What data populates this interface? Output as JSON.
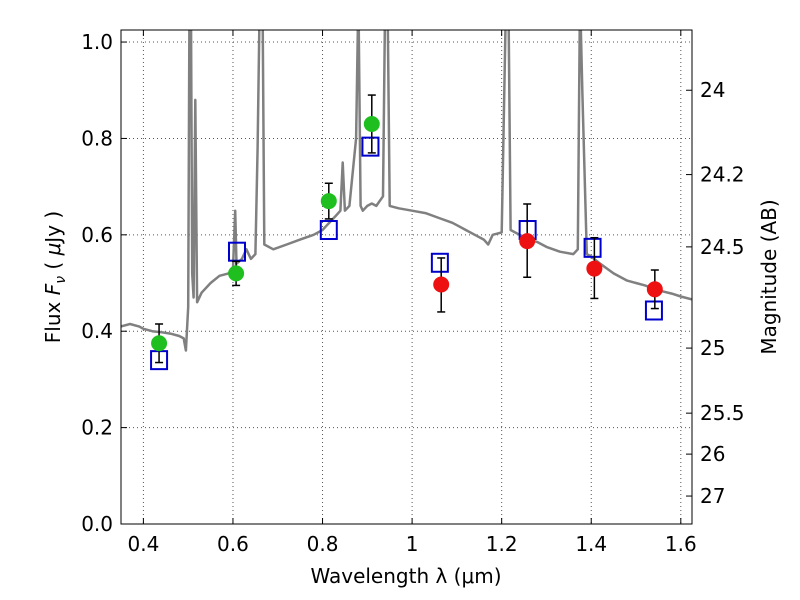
{
  "chart_data": {
    "type": "scatter",
    "xlabel": "Wavelength  λ (μm)",
    "ylabel_parts": [
      "Flux  ",
      "F",
      "ν",
      "  ( ",
      "μ",
      "Jy )"
    ],
    "ylabel_right": "Magnitude (AB)",
    "xlim": [
      0.35,
      1.625
    ],
    "ylim": [
      0.0,
      1.025
    ],
    "x_ticks": [
      0.4,
      0.6,
      0.8,
      1.0,
      1.2,
      1.4,
      1.6
    ],
    "x_tick_labels": [
      "0.4",
      "0.6",
      "0.8",
      "1",
      "1.2",
      "1.4",
      "1.6"
    ],
    "y_ticks": [
      0.0,
      0.2,
      0.4,
      0.6,
      0.8,
      1.0
    ],
    "y_tick_labels": [
      "0.0",
      "0.2",
      "0.4",
      "0.6",
      "0.8",
      "1.0"
    ],
    "right_ticks": [
      {
        "flux": 0.9,
        "label": "24"
      },
      {
        "flux": 0.725,
        "label": "24.2"
      },
      {
        "flux": 0.575,
        "label": "24.5"
      },
      {
        "flux": 0.365,
        "label": "25"
      },
      {
        "flux": 0.23,
        "label": "25.5"
      },
      {
        "flux": 0.145,
        "label": "26"
      },
      {
        "flux": 0.058,
        "label": "27"
      }
    ],
    "grid": true,
    "colors": {
      "spectrum": "#808080",
      "green": "#1fbf1f",
      "red": "#ee1111",
      "model_box": "#0000cc",
      "errorbar": "#000000",
      "grid": "#555555"
    },
    "series": [
      {
        "kind": "spectrum_line",
        "points": [
          [
            0.35,
            0.41
          ],
          [
            0.37,
            0.415
          ],
          [
            0.39,
            0.41
          ],
          [
            0.4,
            0.405
          ],
          [
            0.42,
            0.4
          ],
          [
            0.44,
            0.398
          ],
          [
            0.46,
            0.395
          ],
          [
            0.48,
            0.39
          ],
          [
            0.49,
            0.385
          ],
          [
            0.495,
            0.36
          ],
          [
            0.5,
            0.45
          ],
          [
            0.503,
            1.1
          ],
          [
            0.506,
            1.1
          ],
          [
            0.509,
            0.52
          ],
          [
            0.512,
            0.47
          ],
          [
            0.516,
            0.88
          ],
          [
            0.52,
            0.46
          ],
          [
            0.53,
            0.48
          ],
          [
            0.55,
            0.5
          ],
          [
            0.57,
            0.515
          ],
          [
            0.59,
            0.52
          ],
          [
            0.6,
            0.53
          ],
          [
            0.605,
            0.65
          ],
          [
            0.608,
            0.54
          ],
          [
            0.62,
            0.55
          ],
          [
            0.63,
            0.57
          ],
          [
            0.64,
            0.55
          ],
          [
            0.65,
            0.56
          ],
          [
            0.655,
            0.78
          ],
          [
            0.66,
            1.1
          ],
          [
            0.666,
            1.1
          ],
          [
            0.67,
            0.58
          ],
          [
            0.69,
            0.57
          ],
          [
            0.72,
            0.58
          ],
          [
            0.75,
            0.59
          ],
          [
            0.78,
            0.6
          ],
          [
            0.8,
            0.61
          ],
          [
            0.81,
            0.62
          ],
          [
            0.82,
            0.63
          ],
          [
            0.83,
            0.64
          ],
          [
            0.84,
            0.65
          ],
          [
            0.845,
            0.75
          ],
          [
            0.85,
            0.65
          ],
          [
            0.86,
            0.66
          ],
          [
            0.875,
            0.8
          ],
          [
            0.88,
            1.1
          ],
          [
            0.885,
            0.66
          ],
          [
            0.89,
            0.65
          ],
          [
            0.9,
            0.66
          ],
          [
            0.91,
            0.665
          ],
          [
            0.92,
            0.66
          ],
          [
            0.935,
            0.68
          ],
          [
            0.94,
            1.1
          ],
          [
            0.945,
            1.1
          ],
          [
            0.95,
            0.66
          ],
          [
            0.97,
            0.655
          ],
          [
            1.0,
            0.65
          ],
          [
            1.03,
            0.645
          ],
          [
            1.06,
            0.635
          ],
          [
            1.09,
            0.625
          ],
          [
            1.1,
            0.62
          ],
          [
            1.12,
            0.61
          ],
          [
            1.14,
            0.6
          ],
          [
            1.16,
            0.59
          ],
          [
            1.17,
            0.58
          ],
          [
            1.18,
            0.6
          ],
          [
            1.2,
            0.605
          ],
          [
            1.21,
            1.1
          ],
          [
            1.215,
            1.1
          ],
          [
            1.22,
            0.61
          ],
          [
            1.24,
            0.6
          ],
          [
            1.26,
            0.59
          ],
          [
            1.28,
            0.585
          ],
          [
            1.3,
            0.575
          ],
          [
            1.33,
            0.565
          ],
          [
            1.36,
            0.56
          ],
          [
            1.37,
            0.57
          ],
          [
            1.375,
            1.1
          ],
          [
            1.38,
            0.9
          ],
          [
            1.39,
            0.56
          ],
          [
            1.4,
            0.555
          ],
          [
            1.42,
            0.54
          ],
          [
            1.45,
            0.52
          ],
          [
            1.48,
            0.505
          ],
          [
            1.5,
            0.5
          ],
          [
            1.52,
            0.495
          ],
          [
            1.55,
            0.485
          ],
          [
            1.58,
            0.478
          ],
          [
            1.6,
            0.472
          ],
          [
            1.625,
            0.466
          ]
        ]
      },
      {
        "kind": "observed",
        "color_key": "green",
        "points": [
          {
            "x": 0.435,
            "y": 0.375,
            "err_lo": 0.04,
            "err_hi": 0.04
          },
          {
            "x": 0.607,
            "y": 0.52,
            "err_lo": 0.025,
            "err_hi": 0.025
          },
          {
            "x": 0.814,
            "y": 0.67,
            "err_lo": 0.037,
            "err_hi": 0.037
          },
          {
            "x": 0.91,
            "y": 0.83,
            "err_lo": 0.06,
            "err_hi": 0.06
          }
        ]
      },
      {
        "kind": "observed",
        "color_key": "red",
        "points": [
          {
            "x": 1.065,
            "y": 0.497,
            "err_lo": 0.057,
            "err_hi": 0.055
          },
          {
            "x": 1.257,
            "y": 0.587,
            "err_lo": 0.075,
            "err_hi": 0.077
          },
          {
            "x": 1.407,
            "y": 0.53,
            "err_lo": 0.062,
            "err_hi": 0.064
          },
          {
            "x": 1.542,
            "y": 0.487,
            "err_lo": 0.04,
            "err_hi": 0.04
          }
        ]
      },
      {
        "kind": "model_box",
        "color_key": "model_box",
        "points": [
          {
            "x": 0.435,
            "y": 0.34
          },
          {
            "x": 0.609,
            "y": 0.565
          },
          {
            "x": 0.814,
            "y": 0.61
          },
          {
            "x": 0.907,
            "y": 0.783
          },
          {
            "x": 1.062,
            "y": 0.542
          },
          {
            "x": 1.258,
            "y": 0.61
          },
          {
            "x": 1.403,
            "y": 0.573
          },
          {
            "x": 1.54,
            "y": 0.443
          }
        ]
      }
    ]
  }
}
